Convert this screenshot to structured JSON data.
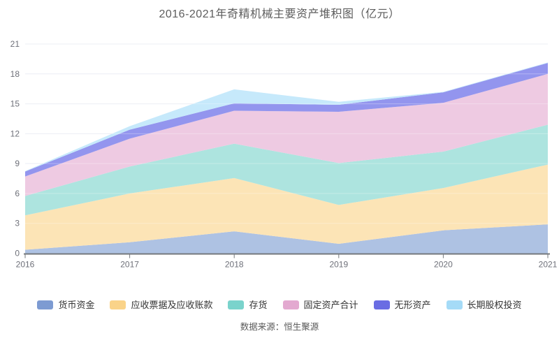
{
  "title": "2016-2021年奇精机械主要资产堆积图（亿元）",
  "source": "数据来源：恒生聚源",
  "chart_data": {
    "type": "area",
    "stacked": true,
    "title": "2016-2021年奇精机械主要资产堆积图（亿元）",
    "categories": [
      "2016",
      "2017",
      "2018",
      "2019",
      "2020",
      "2021"
    ],
    "series": [
      {
        "name": "货币资金",
        "color": "#7D9BD2",
        "fill": "#AEC2E3",
        "values": [
          0.35,
          1.1,
          2.2,
          0.95,
          2.3,
          2.9
        ]
      },
      {
        "name": "应收票据及应收账款",
        "color": "#FAD389",
        "fill": "#FCE4B6",
        "values": [
          3.45,
          4.9,
          5.35,
          3.9,
          4.25,
          6.0
        ]
      },
      {
        "name": "存货",
        "color": "#7AD3CC",
        "fill": "#ADE4DF",
        "values": [
          1.95,
          2.7,
          3.45,
          4.2,
          3.65,
          4.0
        ]
      },
      {
        "name": "固定资产合计",
        "color": "#E3A9D0",
        "fill": "#EECAE2",
        "values": [
          1.95,
          2.8,
          3.3,
          5.15,
          4.9,
          5.1
        ]
      },
      {
        "name": "无形资产",
        "color": "#6A6DE3",
        "fill": "#9395EE",
        "values": [
          0.5,
          0.9,
          0.75,
          0.7,
          1.05,
          1.1
        ]
      },
      {
        "name": "长期股权投资",
        "color": "#A5DBF7",
        "fill": "#C6E9FB",
        "values": [
          0.05,
          0.35,
          1.4,
          0.3,
          0.05,
          0.05
        ]
      }
    ],
    "ylim": [
      0,
      21
    ],
    "yticks": [
      0,
      3,
      6,
      9,
      12,
      15,
      18,
      21
    ],
    "xlabel": "",
    "ylabel": "",
    "grid": true,
    "legend_position": "bottom"
  }
}
